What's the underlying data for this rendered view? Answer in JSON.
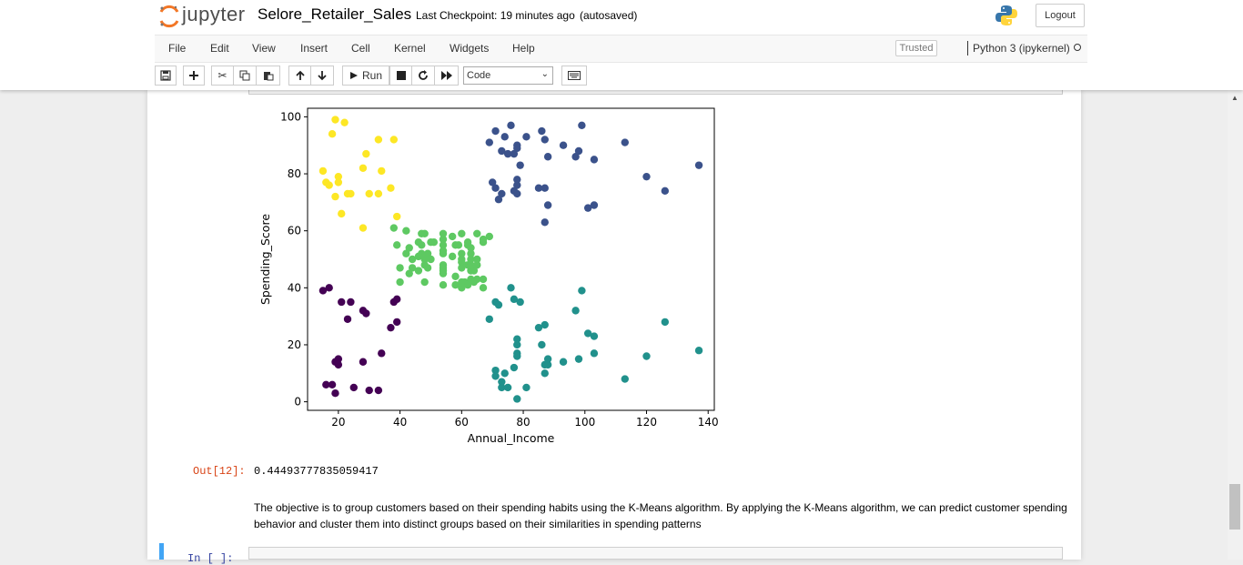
{
  "header": {
    "logo_text": "jupyter",
    "notebook_title": "Selore_Retailer_Sales",
    "checkpoint": "Last Checkpoint: 19 minutes ago",
    "autosave": "(autosaved)",
    "logout_label": "Logout"
  },
  "menu": {
    "items": [
      "File",
      "Edit",
      "View",
      "Insert",
      "Cell",
      "Kernel",
      "Widgets",
      "Help"
    ],
    "trusted_label": "Trusted",
    "kernel_name": "Python 3 (ipykernel)"
  },
  "toolbar": {
    "run_label": "Run",
    "cell_type": "Code",
    "buttons": [
      "save-icon",
      "plus-icon",
      "cut-icon",
      "copy-icon",
      "paste-icon",
      "arrow-up-icon",
      "arrow-down-icon",
      "run-icon",
      "stop-icon",
      "restart-icon",
      "fast-forward-icon",
      "keyboard-icon"
    ]
  },
  "output": {
    "prompt": "Out[12]:",
    "value": "0.44493777835059417"
  },
  "markdown": {
    "text": "The objective is to group customers based on their spending habits using the K-Means algorithm. By applying the K-Means algorithm, we can predict customer spending behavior and cluster them into distinct groups based on their similarities in spending patterns"
  },
  "next_cell": {
    "prompt": "In [ ]:"
  },
  "chart_data": {
    "type": "scatter",
    "xlabel": "Annual_Income",
    "ylabel": "Spending_Score",
    "xlim": [
      10,
      142
    ],
    "ylim": [
      -3,
      103
    ],
    "xticks": [
      20,
      40,
      60,
      80,
      100,
      120,
      140
    ],
    "yticks": [
      0,
      20,
      40,
      60,
      80,
      100
    ],
    "grid": false,
    "series": [
      {
        "color": "#440154",
        "points": [
          [
            15,
            39
          ],
          [
            16,
            6
          ],
          [
            17,
            40
          ],
          [
            18,
            6
          ],
          [
            19,
            3
          ],
          [
            19,
            14
          ],
          [
            20,
            15
          ],
          [
            20,
            13
          ],
          [
            21,
            35
          ],
          [
            23,
            29
          ],
          [
            24,
            35
          ],
          [
            25,
            5
          ],
          [
            28,
            14
          ],
          [
            28,
            32
          ],
          [
            29,
            31
          ],
          [
            30,
            4
          ],
          [
            33,
            4
          ],
          [
            34,
            17
          ],
          [
            37,
            26
          ],
          [
            38,
            35
          ],
          [
            39,
            36
          ],
          [
            39,
            28
          ]
        ]
      },
      {
        "color": "#3b528b",
        "points": [
          [
            69,
            91
          ],
          [
            70,
            77
          ],
          [
            71,
            95
          ],
          [
            71,
            75
          ],
          [
            72,
            71
          ],
          [
            73,
            88
          ],
          [
            73,
            73
          ],
          [
            74,
            93
          ],
          [
            75,
            87
          ],
          [
            76,
            97
          ],
          [
            77,
            74
          ],
          [
            77,
            87
          ],
          [
            78,
            90
          ],
          [
            78,
            89
          ],
          [
            78,
            76
          ],
          [
            78,
            78
          ],
          [
            78,
            73
          ],
          [
            79,
            83
          ],
          [
            81,
            93
          ],
          [
            85,
            75
          ],
          [
            86,
            95
          ],
          [
            87,
            63
          ],
          [
            87,
            92
          ],
          [
            87,
            75
          ],
          [
            88,
            69
          ],
          [
            88,
            86
          ],
          [
            93,
            90
          ],
          [
            97,
            86
          ],
          [
            98,
            88
          ],
          [
            99,
            97
          ],
          [
            101,
            68
          ],
          [
            103,
            85
          ],
          [
            103,
            69
          ],
          [
            113,
            91
          ],
          [
            120,
            79
          ],
          [
            126,
            74
          ],
          [
            137,
            83
          ]
        ]
      },
      {
        "color": "#21918c",
        "points": [
          [
            69,
            29
          ],
          [
            71,
            35
          ],
          [
            71,
            11
          ],
          [
            71,
            9
          ],
          [
            72,
            34
          ],
          [
            73,
            7
          ],
          [
            73,
            5
          ],
          [
            74,
            10
          ],
          [
            75,
            5
          ],
          [
            76,
            40
          ],
          [
            77,
            12
          ],
          [
            77,
            36
          ],
          [
            78,
            22
          ],
          [
            78,
            17
          ],
          [
            78,
            20
          ],
          [
            78,
            16
          ],
          [
            78,
            1
          ],
          [
            79,
            35
          ],
          [
            81,
            5
          ],
          [
            85,
            26
          ],
          [
            86,
            20
          ],
          [
            87,
            27
          ],
          [
            87,
            13
          ],
          [
            87,
            10
          ],
          [
            88,
            13
          ],
          [
            88,
            15
          ],
          [
            93,
            14
          ],
          [
            97,
            32
          ],
          [
            98,
            15
          ],
          [
            99,
            39
          ],
          [
            101,
            24
          ],
          [
            103,
            17
          ],
          [
            103,
            23
          ],
          [
            113,
            8
          ],
          [
            120,
            16
          ],
          [
            126,
            28
          ],
          [
            137,
            18
          ]
        ]
      },
      {
        "color": "#5ec962",
        "points": [
          [
            38,
            61
          ],
          [
            39,
            55
          ],
          [
            40,
            47
          ],
          [
            40,
            42
          ],
          [
            42,
            52
          ],
          [
            42,
            60
          ],
          [
            43,
            54
          ],
          [
            43,
            45
          ],
          [
            44,
            50
          ],
          [
            44,
            47
          ],
          [
            46,
            51
          ],
          [
            46,
            46
          ],
          [
            46,
            56
          ],
          [
            47,
            55
          ],
          [
            47,
            52
          ],
          [
            47,
            59
          ],
          [
            48,
            51
          ],
          [
            48,
            59
          ],
          [
            48,
            50
          ],
          [
            48,
            48
          ],
          [
            48,
            42
          ],
          [
            49,
            47
          ],
          [
            49,
            52
          ],
          [
            50,
            56
          ],
          [
            50,
            50
          ],
          [
            51,
            56
          ],
          [
            54,
            52
          ],
          [
            54,
            45
          ],
          [
            54,
            47
          ],
          [
            54,
            55
          ],
          [
            54,
            57
          ],
          [
            54,
            46
          ],
          [
            54,
            41
          ],
          [
            54,
            48
          ],
          [
            54,
            59
          ],
          [
            54,
            53
          ],
          [
            57,
            51
          ],
          [
            57,
            58
          ],
          [
            58,
            55
          ],
          [
            58,
            44
          ],
          [
            58,
            41
          ],
          [
            59,
            55
          ],
          [
            60,
            49
          ],
          [
            60,
            40
          ],
          [
            60,
            42
          ],
          [
            60,
            52
          ],
          [
            60,
            47
          ],
          [
            60,
            50
          ],
          [
            60,
            59
          ],
          [
            61,
            42
          ],
          [
            62,
            48
          ],
          [
            62,
            55
          ],
          [
            62,
            56
          ],
          [
            62,
            41
          ],
          [
            63,
            50
          ],
          [
            63,
            46
          ],
          [
            63,
            43
          ],
          [
            63,
            48
          ],
          [
            63,
            52
          ],
          [
            63,
            54
          ],
          [
            64,
            42
          ],
          [
            64,
            46
          ],
          [
            65,
            48
          ],
          [
            65,
            50
          ],
          [
            65,
            43
          ],
          [
            65,
            59
          ],
          [
            67,
            43
          ],
          [
            67,
            57
          ],
          [
            67,
            56
          ],
          [
            67,
            40
          ],
          [
            69,
            58
          ]
        ]
      },
      {
        "color": "#fde725",
        "points": [
          [
            15,
            81
          ],
          [
            16,
            77
          ],
          [
            17,
            76
          ],
          [
            18,
            94
          ],
          [
            19,
            99
          ],
          [
            19,
            72
          ],
          [
            20,
            77
          ],
          [
            20,
            79
          ],
          [
            21,
            66
          ],
          [
            22,
            98
          ],
          [
            23,
            73
          ],
          [
            24,
            73
          ],
          [
            28,
            82
          ],
          [
            28,
            61
          ],
          [
            29,
            87
          ],
          [
            30,
            73
          ],
          [
            33,
            92
          ],
          [
            33,
            73
          ],
          [
            34,
            81
          ],
          [
            37,
            75
          ],
          [
            38,
            92
          ],
          [
            39,
            65
          ]
        ]
      }
    ]
  }
}
